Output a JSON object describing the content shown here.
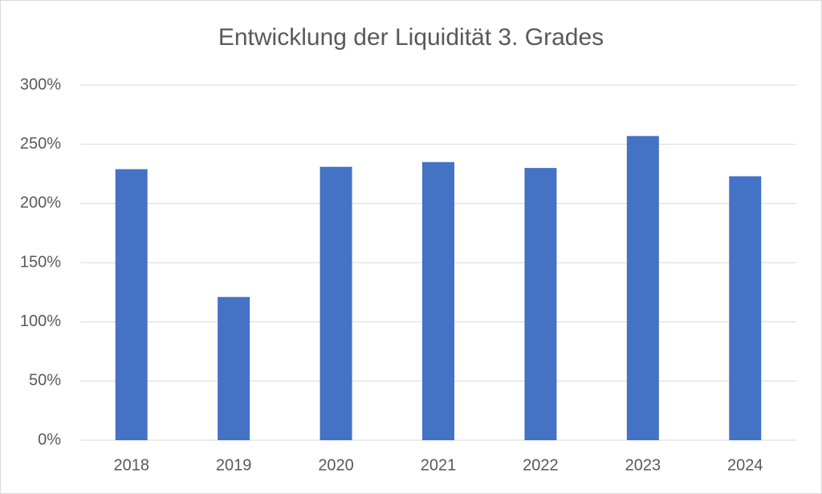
{
  "chart_data": {
    "type": "bar",
    "title": "Entwicklung der Liquidität 3. Grades",
    "categories": [
      "2018",
      "2019",
      "2020",
      "2021",
      "2022",
      "2023",
      "2024"
    ],
    "values": [
      229,
      121,
      231,
      235,
      230,
      257,
      223
    ],
    "color": "#4472c4",
    "ylim": [
      0,
      300
    ],
    "yticks": [
      {
        "value": 0,
        "label": "0%"
      },
      {
        "value": 50,
        "label": "50%"
      },
      {
        "value": 100,
        "label": "100%"
      },
      {
        "value": 150,
        "label": "150%"
      },
      {
        "value": 200,
        "label": "200%"
      },
      {
        "value": 250,
        "label": "250%"
      },
      {
        "value": 300,
        "label": "300%"
      }
    ],
    "grid": true
  }
}
